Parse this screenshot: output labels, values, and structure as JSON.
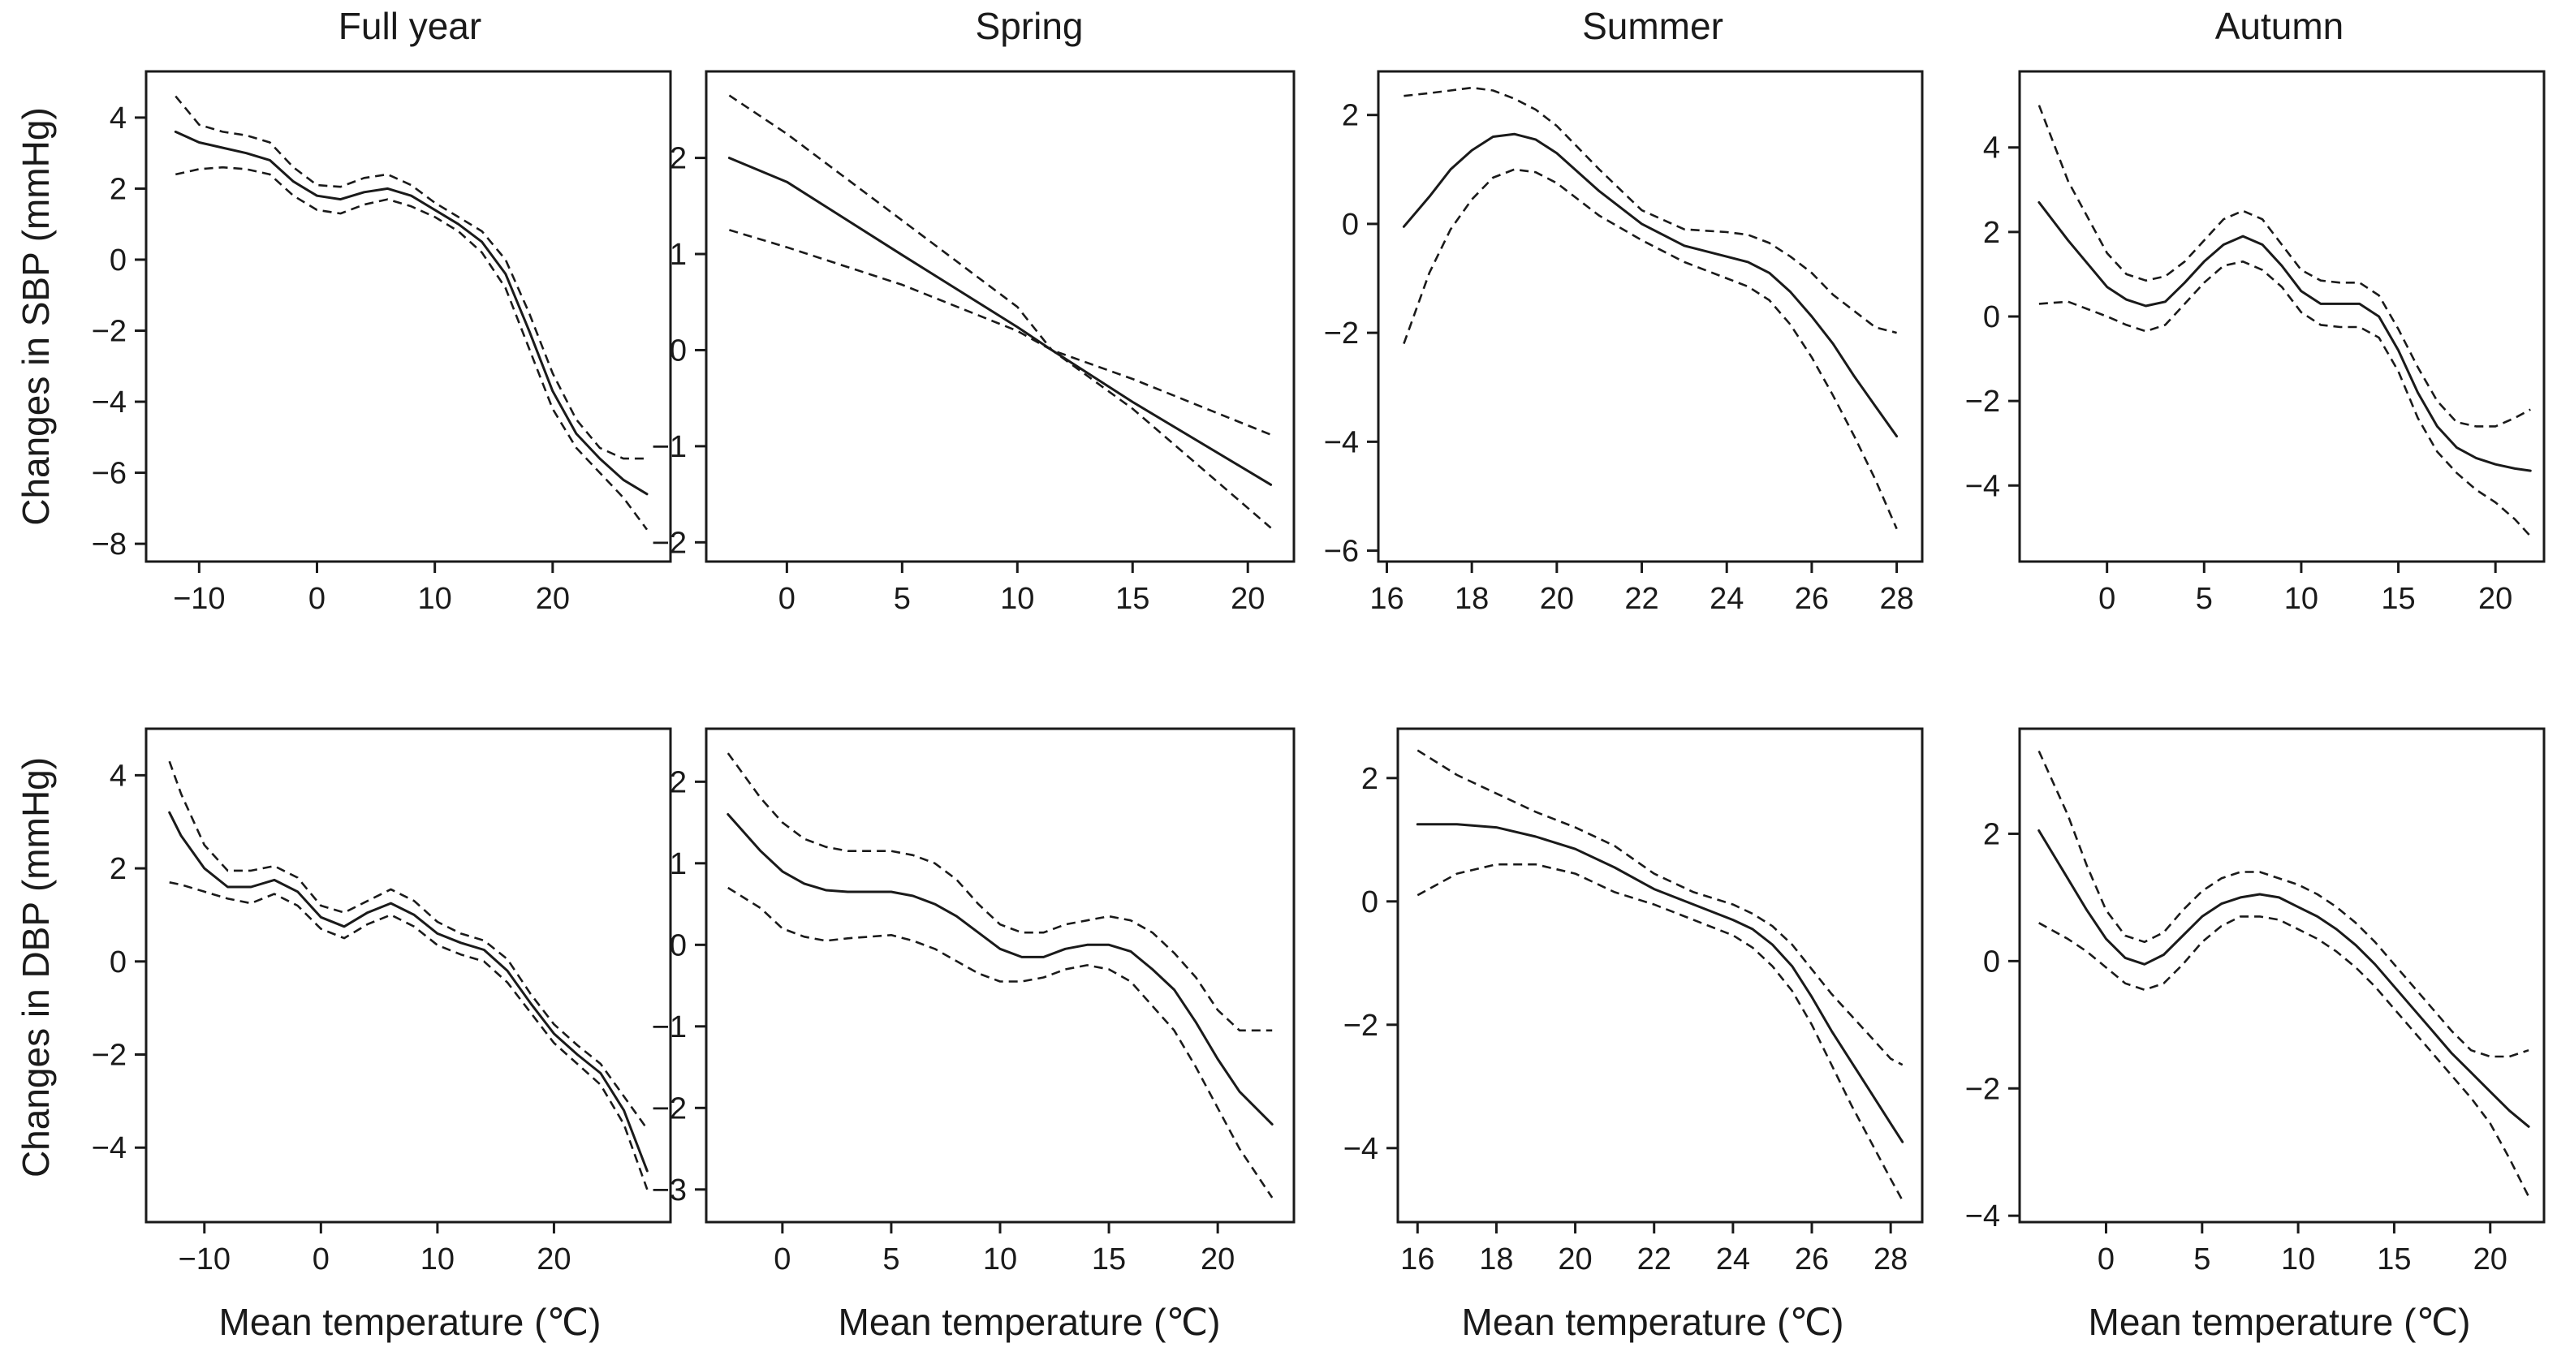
{
  "figure": {
    "column_titles": [
      "Full year",
      "Spring",
      "Summer",
      "Autumn"
    ],
    "ylabels": [
      "Changes in SBP (mmHg)",
      "Changes in DBP (mmHg)"
    ],
    "xlabel": "Mean temperature (℃)"
  },
  "chart_data": [
    {
      "type": "line",
      "title": "Full year",
      "ylabel": "Changes in SBP (mmHg)",
      "xlabel": "",
      "xlim": [
        -14.5,
        30
      ],
      "ylim": [
        -8.5,
        5.3
      ],
      "xticks": [
        -10,
        0,
        10,
        20
      ],
      "yticks": [
        4,
        2,
        0,
        -2,
        -4,
        -6,
        -8
      ],
      "grid": false,
      "legend": "none",
      "x": [
        -12,
        -10,
        -8,
        -6,
        -4,
        -2,
        0,
        2,
        4,
        6,
        8,
        10,
        12,
        14,
        16,
        18,
        20,
        22,
        24,
        26,
        28
      ],
      "series": [
        {
          "values": [
            3.6,
            3.3,
            3.15,
            3.0,
            2.8,
            2.2,
            1.8,
            1.7,
            1.9,
            2.0,
            1.8,
            1.4,
            1.0,
            0.5,
            -0.4,
            -2.0,
            -3.7,
            -4.9,
            -5.6,
            -6.2,
            -6.6
          ]
        },
        {
          "values": [
            4.6,
            3.8,
            3.6,
            3.5,
            3.3,
            2.6,
            2.1,
            2.05,
            2.3,
            2.4,
            2.1,
            1.6,
            1.2,
            0.8,
            0.0,
            -1.5,
            -3.2,
            -4.5,
            -5.3,
            -5.6,
            -5.6
          ]
        },
        {
          "values": [
            2.4,
            2.55,
            2.6,
            2.55,
            2.4,
            1.8,
            1.4,
            1.3,
            1.55,
            1.7,
            1.5,
            1.2,
            0.8,
            0.2,
            -0.8,
            -2.5,
            -4.2,
            -5.3,
            -6.0,
            -6.7,
            -7.6
          ]
        }
      ]
    },
    {
      "type": "line",
      "title": "Spring",
      "ylabel": "",
      "xlabel": "",
      "xlim": [
        -3.5,
        22
      ],
      "ylim": [
        -2.2,
        2.9
      ],
      "xticks": [
        0,
        5,
        10,
        15,
        20
      ],
      "yticks": [
        2,
        1,
        0,
        -1,
        -2
      ],
      "grid": false,
      "legend": "none",
      "x": [
        -2.5,
        0,
        5,
        10,
        11.5,
        15,
        21
      ],
      "series": [
        {
          "values": [
            2.0,
            1.75,
            0.99,
            0.24,
            0.0,
            -0.54,
            -1.4
          ]
        },
        {
          "values": [
            2.65,
            2.25,
            1.35,
            0.45,
            0.0,
            -0.61,
            -1.85
          ]
        },
        {
          "values": [
            1.25,
            1.07,
            0.68,
            0.2,
            0.0,
            -0.3,
            -0.88
          ]
        }
      ]
    },
    {
      "type": "line",
      "title": "Summer",
      "ylabel": "",
      "xlabel": "",
      "xlim": [
        15.8,
        28.6
      ],
      "ylim": [
        -6.2,
        2.8
      ],
      "xticks": [
        16,
        18,
        20,
        22,
        24,
        26,
        28
      ],
      "yticks": [
        2,
        0,
        -2,
        -4,
        -6
      ],
      "grid": false,
      "legend": "none",
      "x": [
        16.4,
        17,
        17.5,
        18,
        18.5,
        19,
        19.5,
        20,
        21,
        22,
        23,
        24,
        24.5,
        25,
        25.5,
        26,
        26.5,
        27,
        27.5,
        28
      ],
      "series": [
        {
          "values": [
            -0.05,
            0.5,
            1.0,
            1.35,
            1.6,
            1.65,
            1.55,
            1.3,
            0.6,
            0.0,
            -0.4,
            -0.6,
            -0.7,
            -0.9,
            -1.25,
            -1.7,
            -2.2,
            -2.8,
            -3.35,
            -3.9
          ]
        },
        {
          "values": [
            2.35,
            2.4,
            2.45,
            2.5,
            2.45,
            2.3,
            2.1,
            1.8,
            1.0,
            0.25,
            -0.1,
            -0.15,
            -0.2,
            -0.35,
            -0.6,
            -0.9,
            -1.3,
            -1.6,
            -1.9,
            -2.0
          ]
        },
        {
          "values": [
            -2.2,
            -0.9,
            -0.1,
            0.45,
            0.85,
            1.0,
            0.95,
            0.75,
            0.15,
            -0.3,
            -0.7,
            -1.0,
            -1.15,
            -1.4,
            -1.85,
            -2.45,
            -3.15,
            -3.9,
            -4.7,
            -5.6
          ]
        }
      ]
    },
    {
      "type": "line",
      "title": "Autumn",
      "ylabel": "",
      "xlabel": "",
      "xlim": [
        -4.5,
        22.5
      ],
      "ylim": [
        -5.8,
        5.8
      ],
      "xticks": [
        0,
        5,
        10,
        15,
        20
      ],
      "yticks": [
        4,
        2,
        0,
        -2,
        -4
      ],
      "grid": false,
      "legend": "none",
      "x": [
        -3.5,
        -2,
        0,
        1,
        2,
        3,
        4,
        5,
        6,
        7,
        8,
        9,
        10,
        11,
        12,
        13,
        14,
        15,
        16,
        17,
        18,
        19,
        20,
        21,
        21.8
      ],
      "series": [
        {
          "values": [
            2.7,
            1.8,
            0.7,
            0.4,
            0.25,
            0.35,
            0.8,
            1.3,
            1.7,
            1.9,
            1.7,
            1.2,
            0.6,
            0.3,
            0.3,
            0.3,
            0.0,
            -0.8,
            -1.8,
            -2.6,
            -3.1,
            -3.35,
            -3.5,
            -3.6,
            -3.65
          ]
        },
        {
          "values": [
            5.0,
            3.2,
            1.5,
            1.0,
            0.85,
            0.95,
            1.3,
            1.8,
            2.3,
            2.5,
            2.3,
            1.7,
            1.1,
            0.85,
            0.8,
            0.8,
            0.5,
            -0.3,
            -1.2,
            -2.0,
            -2.5,
            -2.6,
            -2.6,
            -2.4,
            -2.2
          ]
        },
        {
          "values": [
            0.3,
            0.35,
            0.0,
            -0.2,
            -0.35,
            -0.2,
            0.3,
            0.8,
            1.2,
            1.3,
            1.1,
            0.7,
            0.1,
            -0.2,
            -0.25,
            -0.25,
            -0.5,
            -1.3,
            -2.4,
            -3.2,
            -3.7,
            -4.1,
            -4.4,
            -4.8,
            -5.2
          ]
        }
      ]
    },
    {
      "type": "line",
      "title": "",
      "ylabel": "Changes in DBP (mmHg)",
      "xlabel": "Mean temperature (℃)",
      "xlim": [
        -15,
        30
      ],
      "ylim": [
        -5.6,
        5.0
      ],
      "xticks": [
        -10,
        0,
        10,
        20
      ],
      "yticks": [
        4,
        2,
        0,
        -2,
        -4
      ],
      "grid": false,
      "legend": "none",
      "x": [
        -13,
        -12,
        -10,
        -8,
        -6,
        -4,
        -2,
        0,
        2,
        4,
        6,
        8,
        10,
        12,
        14,
        16,
        18,
        20,
        22,
        24,
        26,
        28
      ],
      "series": [
        {
          "values": [
            3.2,
            2.7,
            2.0,
            1.6,
            1.6,
            1.75,
            1.5,
            0.95,
            0.75,
            1.05,
            1.25,
            1.0,
            0.6,
            0.4,
            0.25,
            -0.2,
            -0.9,
            -1.55,
            -2.0,
            -2.4,
            -3.2,
            -4.5
          ]
        },
        {
          "values": [
            4.3,
            3.6,
            2.5,
            1.95,
            1.95,
            2.05,
            1.8,
            1.2,
            1.05,
            1.3,
            1.55,
            1.3,
            0.85,
            0.6,
            0.45,
            0.05,
            -0.7,
            -1.35,
            -1.8,
            -2.2,
            -2.9,
            -3.6
          ]
        },
        {
          "values": [
            1.7,
            1.65,
            1.5,
            1.35,
            1.25,
            1.45,
            1.2,
            0.7,
            0.5,
            0.8,
            1.0,
            0.75,
            0.35,
            0.15,
            0.0,
            -0.45,
            -1.1,
            -1.75,
            -2.2,
            -2.65,
            -3.5,
            -4.9
          ]
        }
      ]
    },
    {
      "type": "line",
      "title": "",
      "ylabel": "",
      "xlabel": "Mean temperature (℃)",
      "xlim": [
        -3.5,
        23.5
      ],
      "ylim": [
        -3.4,
        2.65
      ],
      "xticks": [
        0,
        5,
        10,
        15,
        20
      ],
      "yticks": [
        2,
        1,
        0,
        -1,
        -2,
        -3
      ],
      "grid": false,
      "legend": "none",
      "x": [
        -2.5,
        -1,
        0,
        1,
        2,
        3,
        4,
        5,
        6,
        7,
        8,
        9,
        10,
        11,
        12,
        13,
        14,
        15,
        16,
        17,
        18,
        19,
        20,
        21,
        22.5
      ],
      "series": [
        {
          "values": [
            1.6,
            1.15,
            0.9,
            0.75,
            0.67,
            0.65,
            0.65,
            0.65,
            0.6,
            0.5,
            0.35,
            0.15,
            -0.05,
            -0.15,
            -0.15,
            -0.05,
            0.0,
            0.0,
            -0.08,
            -0.3,
            -0.55,
            -0.95,
            -1.4,
            -1.8,
            -2.2
          ]
        },
        {
          "values": [
            2.35,
            1.8,
            1.5,
            1.3,
            1.2,
            1.15,
            1.15,
            1.15,
            1.1,
            1.0,
            0.8,
            0.5,
            0.25,
            0.15,
            0.15,
            0.25,
            0.3,
            0.35,
            0.3,
            0.15,
            -0.1,
            -0.4,
            -0.8,
            -1.05,
            -1.05
          ]
        },
        {
          "values": [
            0.7,
            0.45,
            0.2,
            0.1,
            0.05,
            0.08,
            0.1,
            0.12,
            0.05,
            -0.05,
            -0.2,
            -0.35,
            -0.45,
            -0.45,
            -0.4,
            -0.3,
            -0.25,
            -0.3,
            -0.45,
            -0.75,
            -1.05,
            -1.5,
            -2.0,
            -2.5,
            -3.1
          ]
        }
      ]
    },
    {
      "type": "line",
      "title": "",
      "ylabel": "",
      "xlabel": "Mean temperature (℃)",
      "xlim": [
        15.5,
        28.8
      ],
      "ylim": [
        -5.2,
        2.8
      ],
      "xticks": [
        16,
        18,
        20,
        22,
        24,
        26,
        28
      ],
      "yticks": [
        2,
        0,
        -2,
        -4
      ],
      "grid": false,
      "legend": "none",
      "x": [
        16,
        17,
        18,
        19,
        20,
        21,
        22,
        23,
        24,
        24.5,
        25,
        25.5,
        26,
        26.5,
        27,
        27.5,
        28,
        28.3
      ],
      "series": [
        {
          "values": [
            1.25,
            1.25,
            1.2,
            1.05,
            0.85,
            0.55,
            0.2,
            -0.05,
            -0.3,
            -0.45,
            -0.7,
            -1.05,
            -1.55,
            -2.1,
            -2.6,
            -3.1,
            -3.6,
            -3.9
          ]
        },
        {
          "values": [
            2.45,
            2.05,
            1.75,
            1.45,
            1.2,
            0.9,
            0.45,
            0.15,
            -0.05,
            -0.2,
            -0.4,
            -0.7,
            -1.1,
            -1.5,
            -1.85,
            -2.2,
            -2.55,
            -2.65
          ]
        },
        {
          "values": [
            0.1,
            0.45,
            0.6,
            0.6,
            0.45,
            0.15,
            -0.05,
            -0.3,
            -0.55,
            -0.75,
            -1.05,
            -1.45,
            -2.0,
            -2.65,
            -3.3,
            -3.9,
            -4.5,
            -4.85
          ]
        }
      ]
    },
    {
      "type": "line",
      "title": "",
      "ylabel": "",
      "xlabel": "Mean temperature (℃)",
      "xlim": [
        -4.5,
        22.8
      ],
      "ylim": [
        -4.1,
        3.65
      ],
      "xticks": [
        0,
        5,
        10,
        15,
        20
      ],
      "yticks": [
        2,
        0,
        -2,
        -4
      ],
      "grid": false,
      "legend": "none",
      "x": [
        -3.5,
        -2,
        -1,
        0,
        1,
        2,
        3,
        4,
        5,
        6,
        7,
        8,
        9,
        10,
        11,
        12,
        13,
        14,
        15,
        16,
        17,
        18,
        19,
        20,
        21,
        22
      ],
      "series": [
        {
          "values": [
            2.05,
            1.3,
            0.8,
            0.35,
            0.05,
            -0.05,
            0.1,
            0.4,
            0.7,
            0.9,
            1.0,
            1.05,
            1.0,
            0.85,
            0.7,
            0.5,
            0.25,
            -0.05,
            -0.4,
            -0.75,
            -1.1,
            -1.45,
            -1.75,
            -2.05,
            -2.35,
            -2.6
          ]
        },
        {
          "values": [
            3.3,
            2.3,
            1.5,
            0.8,
            0.4,
            0.3,
            0.45,
            0.8,
            1.1,
            1.3,
            1.4,
            1.4,
            1.3,
            1.2,
            1.05,
            0.85,
            0.6,
            0.3,
            -0.05,
            -0.4,
            -0.75,
            -1.1,
            -1.4,
            -1.5,
            -1.5,
            -1.4
          ]
        },
        {
          "values": [
            0.6,
            0.35,
            0.15,
            -0.1,
            -0.35,
            -0.45,
            -0.35,
            -0.05,
            0.3,
            0.55,
            0.7,
            0.7,
            0.65,
            0.5,
            0.35,
            0.15,
            -0.1,
            -0.4,
            -0.75,
            -1.1,
            -1.45,
            -1.8,
            -2.15,
            -2.55,
            -3.1,
            -3.7
          ]
        }
      ]
    }
  ]
}
